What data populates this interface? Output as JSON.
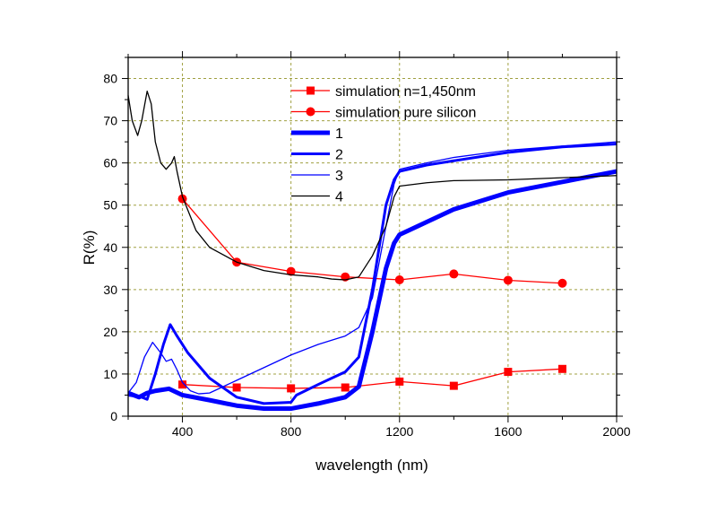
{
  "chart_data": {
    "type": "line",
    "xlabel": "wavelength (nm)",
    "ylabel": "R(%)",
    "xlim": [
      200,
      2000
    ],
    "ylim": [
      0,
      85
    ],
    "xticks": [
      400,
      800,
      1200,
      1600,
      2000
    ],
    "yticks": [
      0,
      10,
      20,
      30,
      40,
      50,
      60,
      70,
      80
    ],
    "grid": true,
    "legend_position": "top-center",
    "series": [
      {
        "name": "simulation n=1,450nm",
        "color": "#ff0000",
        "marker": "square",
        "x": [
          400,
          600,
          800,
          1000,
          1200,
          1400,
          1600,
          1800
        ],
        "y": [
          7.5,
          6.8,
          6.6,
          6.8,
          8.2,
          7.2,
          10.5,
          11.2
        ]
      },
      {
        "name": "simulation pure silicon",
        "color": "#ff0000",
        "marker": "circle",
        "x": [
          400,
          600,
          800,
          1000,
          1200,
          1400,
          1600,
          1800
        ],
        "y": [
          51.5,
          36.5,
          34.3,
          33,
          32.3,
          33.7,
          32.2,
          31.5
        ]
      },
      {
        "name": "1",
        "color": "#0000ff",
        "width": "thick",
        "x": [
          200,
          240,
          270,
          300,
          350,
          400,
          500,
          600,
          700,
          800,
          900,
          1000,
          1050,
          1100,
          1150,
          1180,
          1200,
          1300,
          1400,
          1600,
          1800,
          2000
        ],
        "y": [
          5.5,
          4.5,
          5.5,
          6,
          6.5,
          5,
          3.8,
          2.5,
          1.8,
          1.8,
          3,
          4.5,
          7,
          20,
          35,
          41,
          43,
          46,
          49,
          53,
          55.5,
          58
        ]
      },
      {
        "name": "2",
        "color": "#0000ff",
        "width": "medium",
        "x": [
          200,
          250,
          270,
          300,
          330,
          355,
          380,
          420,
          500,
          600,
          700,
          800,
          820,
          900,
          1000,
          1050,
          1100,
          1150,
          1180,
          1200,
          1300,
          1400,
          1600,
          1800,
          2000
        ],
        "y": [
          5,
          4.5,
          4,
          10,
          17,
          21.7,
          19,
          15,
          9,
          4.5,
          3,
          3.3,
          5,
          7.5,
          10.5,
          14,
          30,
          50,
          56,
          58,
          59.5,
          60.5,
          62.5,
          63.8,
          64.5
        ]
      },
      {
        "name": "3",
        "color": "#0000ff",
        "width": "thin",
        "x": [
          200,
          230,
          260,
          290,
          320,
          340,
          360,
          380,
          400,
          430,
          460,
          500,
          600,
          700,
          800,
          900,
          1000,
          1050,
          1100,
          1150,
          1180,
          1200,
          1300,
          1400,
          1600,
          1800,
          2000
        ],
        "y": [
          5.5,
          8,
          14,
          17.5,
          15,
          13,
          13.5,
          11,
          8,
          6,
          5.3,
          5.5,
          8.5,
          11.5,
          14.5,
          17,
          19,
          21,
          28,
          45,
          55,
          58.5,
          60,
          61.3,
          63,
          64,
          65
        ]
      },
      {
        "name": "4",
        "color": "#000000",
        "width": "thin",
        "x": [
          200,
          215,
          235,
          250,
          270,
          285,
          300,
          320,
          340,
          360,
          370,
          380,
          400,
          450,
          500,
          600,
          700,
          800,
          900,
          950,
          1000,
          1050,
          1100,
          1150,
          1180,
          1200,
          1300,
          1400,
          1600,
          1800,
          2000
        ],
        "y": [
          76,
          70,
          66.5,
          70,
          77,
          74,
          65,
          60,
          58.5,
          60,
          61.5,
          58,
          52,
          44,
          40,
          36.5,
          34.5,
          33.5,
          33,
          32.5,
          32.3,
          33,
          38,
          45,
          52,
          54.5,
          55.3,
          55.8,
          56,
          56.5,
          57
        ]
      }
    ]
  }
}
